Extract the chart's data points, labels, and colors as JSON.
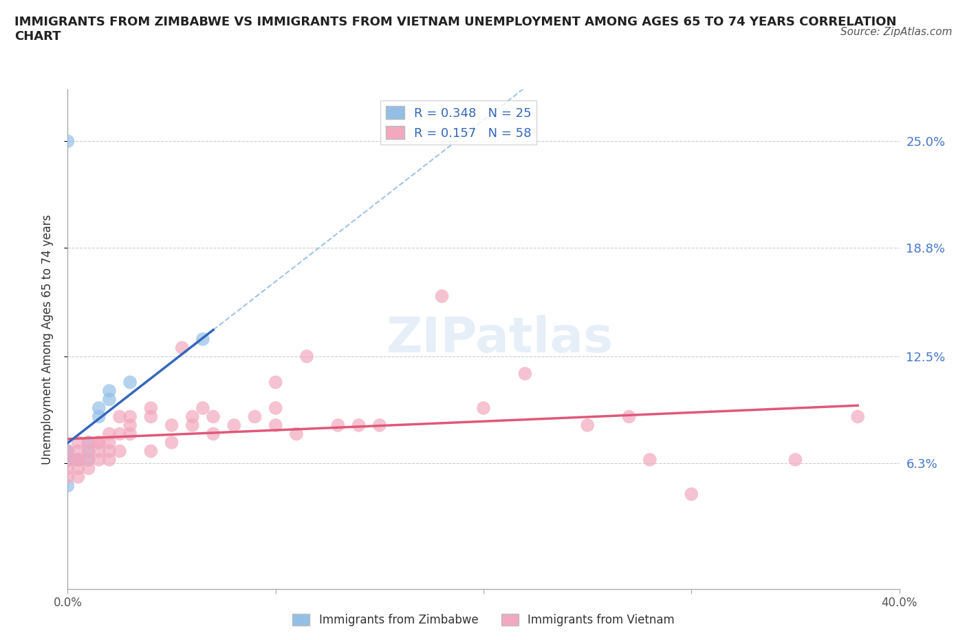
{
  "title": "IMMIGRANTS FROM ZIMBABWE VS IMMIGRANTS FROM VIETNAM UNEMPLOYMENT AMONG AGES 65 TO 74 YEARS CORRELATION\nCHART",
  "source_text": "Source: ZipAtlas.com",
  "ylabel": "Unemployment Among Ages 65 to 74 years",
  "xlim": [
    0.0,
    0.4
  ],
  "ylim": [
    -0.01,
    0.28
  ],
  "ytick_positions": [
    0.063,
    0.125,
    0.188,
    0.25
  ],
  "ytick_labels": [
    "6.3%",
    "12.5%",
    "18.8%",
    "25.0%"
  ],
  "grid_color": "#cccccc",
  "r_zimbabwe": 0.348,
  "n_zimbabwe": 25,
  "r_vietnam": 0.157,
  "n_vietnam": 58,
  "color_zimbabwe": "#93bfe6",
  "color_vietnam": "#f2a8bf",
  "trendline_zimbabwe": "#3366bb",
  "trendline_vietnam": "#e05878",
  "trendline_dashed_color": "#93bfe6",
  "zimbabwe_points": [
    [
      0.0,
      0.065
    ],
    [
      0.0,
      0.065
    ],
    [
      0.0,
      0.065
    ],
    [
      0.0,
      0.065
    ],
    [
      0.0,
      0.065
    ],
    [
      0.0,
      0.065
    ],
    [
      0.0,
      0.065
    ],
    [
      0.0,
      0.065
    ],
    [
      0.0,
      0.065
    ],
    [
      0.0,
      0.07
    ],
    [
      0.0,
      0.07
    ],
    [
      0.0,
      0.05
    ],
    [
      0.005,
      0.065
    ],
    [
      0.005,
      0.065
    ],
    [
      0.005,
      0.065
    ],
    [
      0.01,
      0.065
    ],
    [
      0.01,
      0.07
    ],
    [
      0.01,
      0.075
    ],
    [
      0.015,
      0.09
    ],
    [
      0.015,
      0.095
    ],
    [
      0.02,
      0.1
    ],
    [
      0.02,
      0.105
    ],
    [
      0.03,
      0.11
    ],
    [
      0.065,
      0.135
    ],
    [
      0.0,
      0.25
    ]
  ],
  "vietnam_points": [
    [
      0.0,
      0.055
    ],
    [
      0.0,
      0.06
    ],
    [
      0.0,
      0.065
    ],
    [
      0.0,
      0.07
    ],
    [
      0.005,
      0.055
    ],
    [
      0.005,
      0.06
    ],
    [
      0.005,
      0.065
    ],
    [
      0.005,
      0.07
    ],
    [
      0.005,
      0.075
    ],
    [
      0.005,
      0.065
    ],
    [
      0.01,
      0.06
    ],
    [
      0.01,
      0.065
    ],
    [
      0.01,
      0.07
    ],
    [
      0.01,
      0.075
    ],
    [
      0.015,
      0.065
    ],
    [
      0.015,
      0.07
    ],
    [
      0.015,
      0.075
    ],
    [
      0.015,
      0.075
    ],
    [
      0.02,
      0.065
    ],
    [
      0.02,
      0.07
    ],
    [
      0.02,
      0.075
    ],
    [
      0.02,
      0.08
    ],
    [
      0.025,
      0.07
    ],
    [
      0.025,
      0.08
    ],
    [
      0.025,
      0.09
    ],
    [
      0.03,
      0.08
    ],
    [
      0.03,
      0.085
    ],
    [
      0.03,
      0.09
    ],
    [
      0.04,
      0.07
    ],
    [
      0.04,
      0.09
    ],
    [
      0.04,
      0.095
    ],
    [
      0.05,
      0.075
    ],
    [
      0.05,
      0.085
    ],
    [
      0.055,
      0.13
    ],
    [
      0.06,
      0.085
    ],
    [
      0.06,
      0.09
    ],
    [
      0.065,
      0.095
    ],
    [
      0.07,
      0.08
    ],
    [
      0.07,
      0.09
    ],
    [
      0.08,
      0.085
    ],
    [
      0.09,
      0.09
    ],
    [
      0.1,
      0.085
    ],
    [
      0.1,
      0.095
    ],
    [
      0.1,
      0.11
    ],
    [
      0.11,
      0.08
    ],
    [
      0.115,
      0.125
    ],
    [
      0.13,
      0.085
    ],
    [
      0.14,
      0.085
    ],
    [
      0.15,
      0.085
    ],
    [
      0.18,
      0.16
    ],
    [
      0.2,
      0.095
    ],
    [
      0.22,
      0.115
    ],
    [
      0.25,
      0.085
    ],
    [
      0.27,
      0.09
    ],
    [
      0.28,
      0.065
    ],
    [
      0.3,
      0.045
    ],
    [
      0.35,
      0.065
    ],
    [
      0.38,
      0.09
    ]
  ]
}
